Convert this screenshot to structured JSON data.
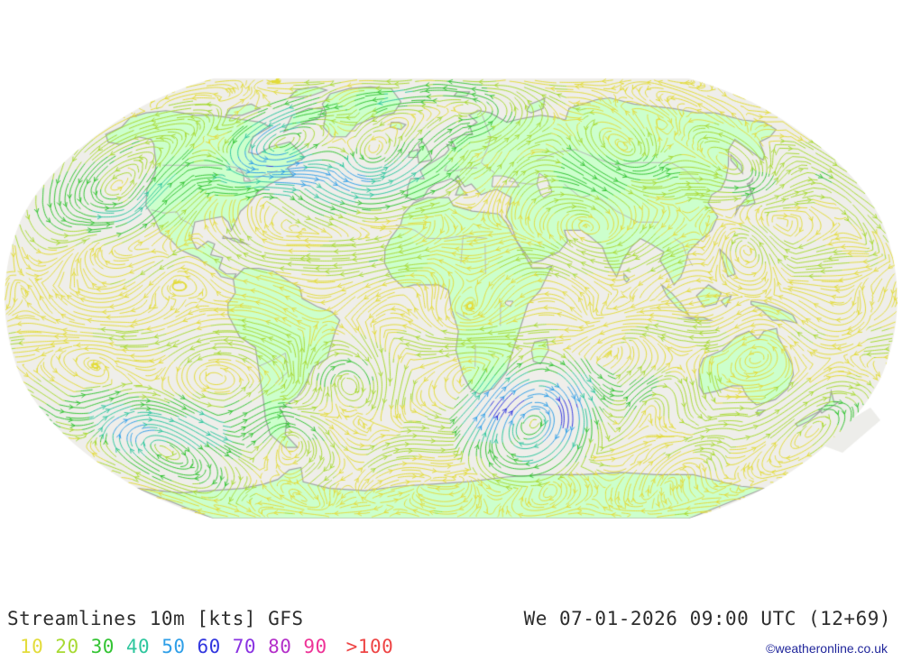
{
  "title": {
    "full": "Streamlines 10m [kts] GFS",
    "parameter": "Streamlines",
    "level": "10m",
    "unit": "[kts]",
    "model": "GFS"
  },
  "timestamp": {
    "text": "We 07-01-2026 09:00 UTC (12+69)",
    "day": "We",
    "date": "07-01-2026",
    "time": "09:00 UTC",
    "run_offset": "(12+69)"
  },
  "copyright": {
    "text": "©weatheronline.co.uk",
    "color": "#20269b"
  },
  "legend": {
    "items": [
      {
        "label": "10",
        "color": "#e3dc3b"
      },
      {
        "label": "20",
        "color": "#a8da33"
      },
      {
        "label": "30",
        "color": "#33c433"
      },
      {
        "label": "40",
        "color": "#2ec79e"
      },
      {
        "label": "50",
        "color": "#2f9fe8"
      },
      {
        "label": "60",
        "color": "#3136df"
      },
      {
        "label": "70",
        "color": "#8a33e2"
      },
      {
        "label": "80",
        "color": "#b42fc9"
      },
      {
        "label": "90",
        "color": "#ee3397"
      },
      {
        "label": ">100",
        "color": "#ee4545"
      }
    ]
  },
  "map": {
    "sea_color": "#efeeea",
    "land_color": "#ccffcc",
    "coast_color": "#a3a3a3",
    "border_color": "#b8b8b8",
    "background": "#ffffff"
  }
}
